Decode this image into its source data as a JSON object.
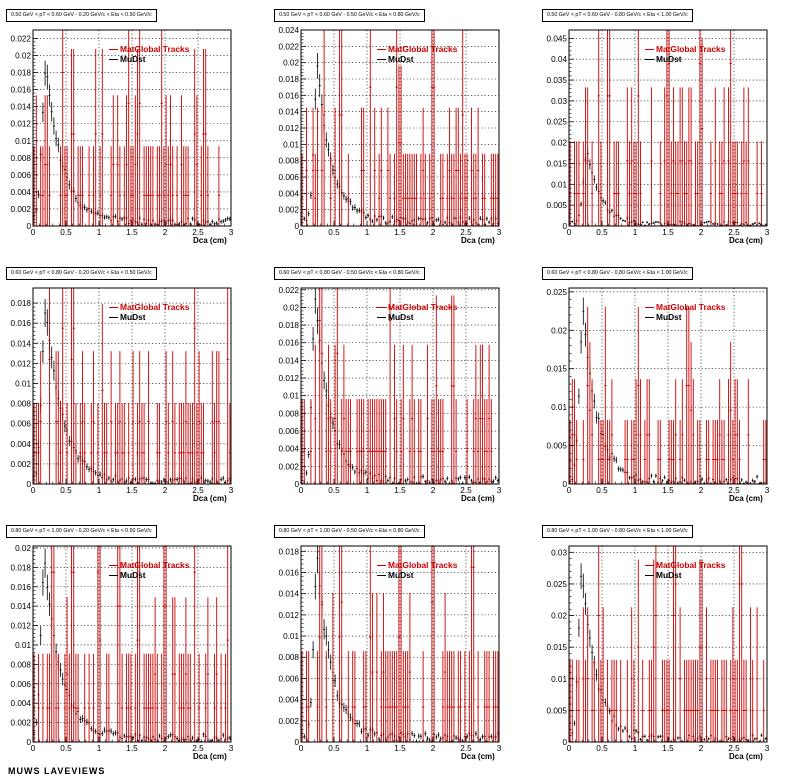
{
  "legend": {
    "series_red": "MatGlobal Tracks",
    "series_black": "MuDst"
  },
  "colors": {
    "red": "#cc0000",
    "black": "#000000"
  },
  "footer_fragment": "MUWS LAVEVIEWS",
  "chart_data": [
    {
      "type": "scatter",
      "title": "0.50 GeV < pT < 0.60 GeV -  0.20 GeV/c < Eta < 0.50 GeV/c",
      "xlabel": "Dca (cm)",
      "xlim": [
        0,
        3
      ],
      "ylim": [
        0,
        0.023
      ],
      "yticks": [
        0.002,
        0.004,
        0.006,
        0.008,
        0.01,
        0.012,
        0.014,
        0.016,
        0.018,
        0.02,
        0.022
      ],
      "ytick_labels": [
        "0.002",
        "0.004",
        "0.006",
        "0.008",
        "0.01",
        "0.012",
        "0.014",
        "0.016",
        "0.018",
        "0.02",
        "0.022"
      ],
      "xticks": [
        0,
        0.5,
        1,
        1.5,
        2,
        2.5,
        3
      ],
      "xtick_labels": [
        "0",
        "0.5",
        "1",
        "1.5",
        "2",
        "2.5",
        "3"
      ],
      "grid": true,
      "legend_position": "top-right",
      "mudst_peak": {
        "x": 0.2,
        "y": 0.0185,
        "width": 0.15,
        "bg": 0.0005,
        "tail": 0.25,
        "noise": 0.0008
      },
      "matglobal": {
        "unit": 0.0036,
        "top_levels": [
          0.022,
          0.0185,
          0.016,
          0.0125
        ],
        "spike_x": [
          0.45,
          0.6,
          0.95,
          1.05,
          1.45,
          1.6,
          1.95,
          2.45,
          2.6
        ]
      }
    },
    {
      "type": "scatter",
      "title": "0.50 GeV < pT < 0.60 GeV -  0.50 GeV/c < Eta < 0.80 GeV/c",
      "xlabel": "Dca (cm)",
      "xlim": [
        0,
        3
      ],
      "ylim": [
        0,
        0.024
      ],
      "yticks": [
        0.002,
        0.004,
        0.006,
        0.008,
        0.01,
        0.012,
        0.014,
        0.016,
        0.018,
        0.02,
        0.022,
        0.024
      ],
      "ytick_labels": [
        "0.002",
        "0.004",
        "0.006",
        "0.008",
        "0.01",
        "0.012",
        "0.014",
        "0.016",
        "0.018",
        "0.02",
        "0.022",
        "0.024"
      ],
      "xticks": [
        0,
        0.5,
        1,
        1.5,
        2,
        2.5,
        3
      ],
      "xtick_labels": [
        "0",
        "0.5",
        "1",
        "1.5",
        "2",
        "2.5",
        "3"
      ],
      "grid": true,
      "legend_position": "top-right",
      "mudst_peak": {
        "x": 0.25,
        "y": 0.0195,
        "width": 0.12,
        "bg": 0.0006,
        "tail": 0.22,
        "noise": 0.0009
      },
      "matglobal": {
        "unit": 0.0034,
        "top_levels": [
          0.023,
          0.0195,
          0.0165,
          0.013
        ],
        "spike_x": [
          0.35,
          0.6,
          1.05,
          1.45,
          1.5,
          2.0,
          2.45
        ]
      }
    },
    {
      "type": "scatter",
      "title": "0.50 GeV < pT < 0.60 GeV -  0.80 GeV/c < Eta < 1.00 GeV/c",
      "xlabel": "Dca (cm)",
      "xlim": [
        0,
        3
      ],
      "ylim": [
        0,
        0.047
      ],
      "yticks": [
        0.005,
        0.01,
        0.015,
        0.02,
        0.025,
        0.03,
        0.035,
        0.04,
        0.045
      ],
      "ytick_labels": [
        "0.005",
        "0.01",
        "0.015",
        "0.02",
        "0.025",
        "0.03",
        "0.035",
        "0.04",
        "0.045"
      ],
      "xticks": [
        0,
        0.5,
        1,
        1.5,
        2,
        2.5,
        3
      ],
      "xtick_labels": [
        "0",
        "0.5",
        "1",
        "1.5",
        "2",
        "2.5",
        "3"
      ],
      "grid": true,
      "legend_position": "top-right",
      "mudst_peak": {
        "x": 0.28,
        "y": 0.018,
        "width": 0.14,
        "bg": 0.0005,
        "tail": 0.2,
        "noise": 0.0012
      },
      "matglobal": {
        "unit": 0.0078,
        "top_levels": [
          0.044,
          0.036,
          0.029,
          0.022
        ],
        "spike_x": [
          0.45,
          0.6,
          1.05,
          1.5,
          2.0,
          2.45
        ]
      }
    },
    {
      "type": "scatter",
      "title": "0.60 GeV < pT < 0.80 GeV -  0.20 GeV/c < Eta < 0.50 GeV/c",
      "xlabel": "Dca (cm)",
      "xlim": [
        0,
        3
      ],
      "ylim": [
        0,
        0.0195
      ],
      "yticks": [
        0.002,
        0.004,
        0.006,
        0.008,
        0.01,
        0.012,
        0.014,
        0.016,
        0.018
      ],
      "ytick_labels": [
        "0.002",
        "0.004",
        "0.006",
        "0.008",
        "0.01",
        "0.012",
        "0.014",
        "0.016",
        "0.018"
      ],
      "xticks": [
        0,
        0.5,
        1,
        1.5,
        2,
        2.5,
        3
      ],
      "xtick_labels": [
        "0",
        "0.5",
        "1",
        "1.5",
        "2",
        "2.5",
        "3"
      ],
      "grid": true,
      "legend_position": "top-right",
      "mudst_peak": {
        "x": 0.2,
        "y": 0.0175,
        "width": 0.15,
        "bg": 0.0003,
        "tail": 0.25,
        "noise": 0.0007
      },
      "matglobal": {
        "unit": 0.0031,
        "top_levels": [
          0.0185,
          0.0155,
          0.0125,
          0.01
        ],
        "spike_x": [
          0.25,
          0.45,
          0.6,
          1.05,
          2.45,
          2.95
        ]
      }
    },
    {
      "type": "scatter",
      "title": "0.60 GeV < pT < 0.80 GeV -  0.50 GeV/c < Eta < 0.80 GeV/c",
      "xlabel": "Dca (cm)",
      "xlim": [
        0,
        3
      ],
      "ylim": [
        0,
        0.0222
      ],
      "yticks": [
        0.002,
        0.004,
        0.006,
        0.008,
        0.01,
        0.012,
        0.014,
        0.016,
        0.018,
        0.02,
        0.022
      ],
      "ytick_labels": [
        "0.002",
        "0.004",
        "0.006",
        "0.008",
        "0.01",
        "0.012",
        "0.014",
        "0.016",
        "0.018",
        "0.02",
        "0.022"
      ],
      "xticks": [
        0,
        0.5,
        1,
        1.5,
        2,
        2.5,
        3
      ],
      "xtick_labels": [
        "0",
        "0.5",
        "1",
        "1.5",
        "2",
        "2.5",
        "3"
      ],
      "grid": true,
      "legend_position": "top-right",
      "mudst_peak": {
        "x": 0.22,
        "y": 0.021,
        "width": 0.12,
        "bg": 0.0004,
        "tail": 0.22,
        "noise": 0.0009
      },
      "matglobal": {
        "unit": 0.0037,
        "top_levels": [
          0.0215,
          0.018,
          0.0145,
          0.011
        ],
        "spike_x": [
          0.3,
          0.55,
          1.35,
          2.05,
          2.3
        ]
      }
    },
    {
      "type": "scatter",
      "title": "0.60 GeV < pT < 0.80 GeV -  0.80 GeV/c < Eta < 1.00 GeV/c",
      "xlabel": "Dca (cm)",
      "xlim": [
        0,
        3
      ],
      "ylim": [
        0,
        0.0255
      ],
      "yticks": [
        0.005,
        0.01,
        0.015,
        0.02,
        0.025
      ],
      "ytick_labels": [
        "0.005",
        "0.01",
        "0.015",
        "0.02",
        "0.025"
      ],
      "xticks": [
        0,
        0.5,
        1,
        1.5,
        2,
        2.5,
        3
      ],
      "xtick_labels": [
        "0",
        "0.5",
        "1",
        "1.5",
        "2",
        "2.5",
        "3"
      ],
      "grid": true,
      "legend_position": "top-right",
      "mudst_peak": {
        "x": 0.22,
        "y": 0.022,
        "width": 0.14,
        "bg": 0.0004,
        "tail": 0.22,
        "noise": 0.0012
      },
      "matglobal": {
        "unit": 0.0032,
        "top_levels": [
          0.0225,
          0.019,
          0.016,
          0.013
        ],
        "spike_x": [
          0.3,
          0.55,
          1.05,
          1.8,
          1.85,
          2.45
        ]
      }
    },
    {
      "type": "scatter",
      "title": "0.80 GeV < pT < 1.00 GeV -  0.20 GeV/c < Eta < 0.50 GeV/c",
      "xlabel": "Dca (cm)",
      "xlim": [
        0,
        3
      ],
      "ylim": [
        0,
        0.0202
      ],
      "yticks": [
        0.002,
        0.004,
        0.006,
        0.008,
        0.01,
        0.012,
        0.014,
        0.016,
        0.018,
        0.02
      ],
      "ytick_labels": [
        "0.002",
        "0.004",
        "0.006",
        "0.008",
        "0.01",
        "0.012",
        "0.014",
        "0.016",
        "0.018",
        "0.02"
      ],
      "xticks": [
        0,
        0.5,
        1,
        1.5,
        2,
        2.5,
        3
      ],
      "xtick_labels": [
        "0",
        "0.5",
        "1",
        "1.5",
        "2",
        "2.5",
        "3"
      ],
      "grid": true,
      "legend_position": "top-right",
      "mudst_peak": {
        "x": 0.18,
        "y": 0.0185,
        "width": 0.14,
        "bg": 0.0004,
        "tail": 0.25,
        "noise": 0.0008
      },
      "matglobal": {
        "unit": 0.0035,
        "top_levels": [
          0.0195,
          0.016,
          0.0125,
          0.01
        ],
        "spike_x": [
          0.3,
          0.6,
          1.0,
          1.3,
          1.6,
          2.0,
          2.45,
          2.95
        ]
      }
    },
    {
      "type": "scatter",
      "title": "0.80 GeV < pT < 1.00 GeV -  0.50 GeV/c < Eta < 0.80 GeV/c",
      "xlabel": "Dca (cm)",
      "xlim": [
        0,
        3
      ],
      "ylim": [
        0,
        0.0185
      ],
      "yticks": [
        0.002,
        0.004,
        0.006,
        0.008,
        0.01,
        0.012,
        0.014,
        0.016,
        0.018
      ],
      "ytick_labels": [
        "0.002",
        "0.004",
        "0.006",
        "0.008",
        "0.01",
        "0.012",
        "0.014",
        "0.016",
        "0.018"
      ],
      "xticks": [
        0,
        0.5,
        1,
        1.5,
        2,
        2.5,
        3
      ],
      "xtick_labels": [
        "0",
        "0.5",
        "1",
        "1.5",
        "2",
        "2.5",
        "3"
      ],
      "grid": true,
      "legend_position": "top-right",
      "mudst_peak": {
        "x": 0.25,
        "y": 0.0172,
        "width": 0.13,
        "bg": 0.0004,
        "tail": 0.22,
        "noise": 0.0009
      },
      "matglobal": {
        "unit": 0.0033,
        "top_levels": [
          0.018,
          0.015,
          0.012,
          0.0095
        ],
        "spike_x": [
          0.3,
          0.6,
          1.05,
          1.5,
          2.0,
          2.6
        ]
      }
    },
    {
      "type": "scatter",
      "title": "0.80 GeV < pT < 1.00 GeV -  0.80 GeV/c < Eta < 1.00 GeV/c",
      "xlabel": "Dca (cm)",
      "xlim": [
        0,
        3
      ],
      "ylim": [
        0,
        0.031
      ],
      "yticks": [
        0.005,
        0.01,
        0.015,
        0.02,
        0.025,
        0.03
      ],
      "ytick_labels": [
        "0.005",
        "0.01",
        "0.015",
        "0.02",
        "0.025",
        "0.03"
      ],
      "xticks": [
        0,
        0.5,
        1,
        1.5,
        2,
        2.5,
        3
      ],
      "xtick_labels": [
        "0",
        "0.5",
        "1",
        "1.5",
        "2",
        "2.5",
        "3"
      ],
      "grid": true,
      "legend_position": "top-right",
      "mudst_peak": {
        "x": 0.2,
        "y": 0.027,
        "width": 0.13,
        "bg": 0.0004,
        "tail": 0.22,
        "noise": 0.0015
      },
      "matglobal": {
        "unit": 0.005,
        "top_levels": [
          0.0205,
          0.016,
          0.0135,
          0.011
        ],
        "spike_x": [
          0.45,
          1.05,
          1.3,
          1.6,
          2.0,
          2.6
        ]
      }
    }
  ]
}
